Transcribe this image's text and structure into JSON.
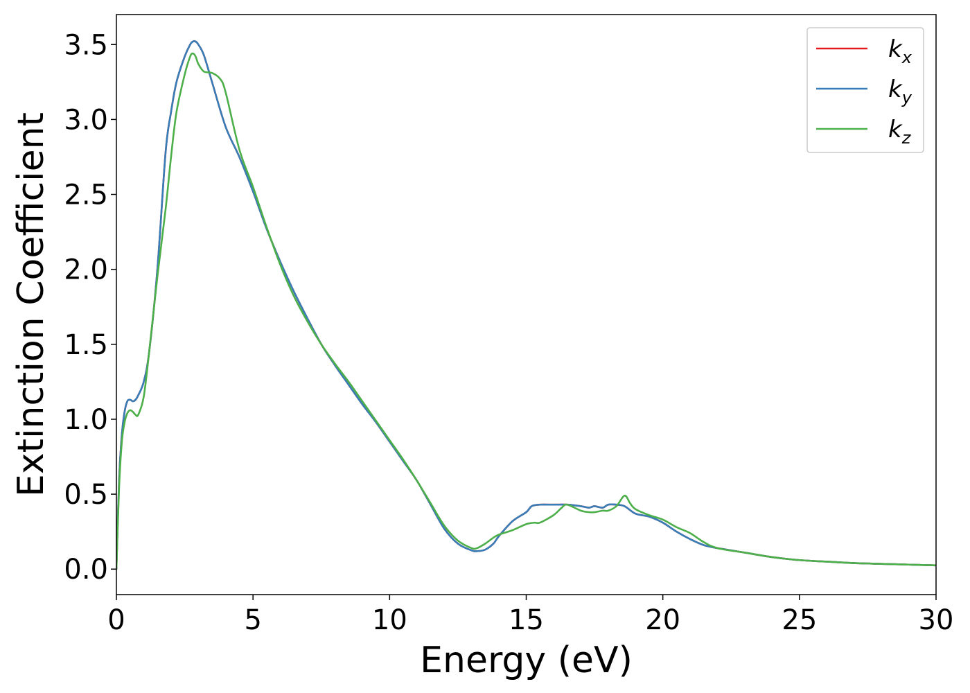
{
  "chart_data": {
    "type": "line",
    "title": "",
    "xlabel": "Energy (eV)",
    "ylabel": "Extinction Coefficient",
    "xlim": [
      0,
      30
    ],
    "ylim": [
      -0.17,
      3.7
    ],
    "xticks": [
      0,
      5,
      10,
      15,
      20,
      25,
      30
    ],
    "yticks": [
      0.0,
      0.5,
      1.0,
      1.5,
      2.0,
      2.5,
      3.0,
      3.5
    ],
    "xtick_labels": [
      "0",
      "5",
      "10",
      "15",
      "20",
      "25",
      "30"
    ],
    "ytick_labels": [
      "0.0",
      "0.5",
      "1.0",
      "1.5",
      "2.0",
      "2.5",
      "3.0",
      "3.5"
    ],
    "grid": false,
    "legend_position": "top-right",
    "series": [
      {
        "name": "k_x",
        "legend_base": "k",
        "legend_sub": "x",
        "color": "#e41a1c",
        "x": [
          0,
          0.1,
          0.2,
          0.3,
          0.4,
          0.5,
          0.6,
          0.7,
          0.8,
          1.0,
          1.2,
          1.5,
          1.8,
          2.0,
          2.2,
          2.5,
          2.7,
          2.8,
          2.9,
          3.0,
          3.2,
          3.5,
          4.0,
          4.5,
          5.0,
          5.5,
          6.0,
          6.5,
          7.0,
          7.5,
          8.0,
          8.5,
          9.0,
          9.5,
          10.0,
          10.5,
          11.0,
          11.5,
          12.0,
          12.5,
          13.0,
          13.2,
          13.5,
          13.8,
          14.0,
          14.5,
          15.0,
          15.2,
          15.5,
          16.0,
          16.5,
          17.0,
          17.3,
          17.5,
          17.8,
          18.0,
          18.3,
          18.6,
          19.0,
          19.5,
          20.0,
          20.5,
          21.0,
          21.5,
          22.0,
          23.0,
          24.0,
          25.0,
          26.0,
          27.0,
          28.0,
          29.0,
          30.0
        ],
        "y": [
          0.0,
          0.6,
          0.9,
          1.05,
          1.12,
          1.13,
          1.12,
          1.13,
          1.16,
          1.25,
          1.45,
          2.0,
          2.78,
          3.05,
          3.25,
          3.42,
          3.5,
          3.52,
          3.52,
          3.5,
          3.43,
          3.25,
          2.95,
          2.75,
          2.52,
          2.27,
          2.05,
          1.85,
          1.67,
          1.5,
          1.36,
          1.23,
          1.1,
          0.98,
          0.85,
          0.72,
          0.59,
          0.43,
          0.27,
          0.17,
          0.125,
          0.12,
          0.13,
          0.17,
          0.22,
          0.32,
          0.38,
          0.42,
          0.43,
          0.43,
          0.43,
          0.42,
          0.41,
          0.42,
          0.41,
          0.43,
          0.43,
          0.42,
          0.37,
          0.35,
          0.31,
          0.25,
          0.2,
          0.16,
          0.14,
          0.11,
          0.08,
          0.06,
          0.05,
          0.04,
          0.035,
          0.03,
          0.025
        ]
      },
      {
        "name": "k_y",
        "legend_base": "k",
        "legend_sub": "y",
        "color": "#377eb8",
        "x": [
          0,
          0.1,
          0.2,
          0.3,
          0.4,
          0.5,
          0.6,
          0.7,
          0.8,
          1.0,
          1.2,
          1.5,
          1.8,
          2.0,
          2.2,
          2.5,
          2.7,
          2.8,
          2.9,
          3.0,
          3.2,
          3.5,
          4.0,
          4.5,
          5.0,
          5.5,
          6.0,
          6.5,
          7.0,
          7.5,
          8.0,
          8.5,
          9.0,
          9.5,
          10.0,
          10.5,
          11.0,
          11.5,
          12.0,
          12.5,
          13.0,
          13.2,
          13.5,
          13.8,
          14.0,
          14.5,
          15.0,
          15.2,
          15.5,
          16.0,
          16.5,
          17.0,
          17.3,
          17.5,
          17.8,
          18.0,
          18.3,
          18.6,
          19.0,
          19.5,
          20.0,
          20.5,
          21.0,
          21.5,
          22.0,
          23.0,
          24.0,
          25.0,
          26.0,
          27.0,
          28.0,
          29.0,
          30.0
        ],
        "y": [
          0.0,
          0.6,
          0.9,
          1.05,
          1.12,
          1.13,
          1.12,
          1.13,
          1.16,
          1.25,
          1.45,
          2.0,
          2.78,
          3.05,
          3.25,
          3.42,
          3.5,
          3.52,
          3.52,
          3.5,
          3.43,
          3.25,
          2.95,
          2.75,
          2.52,
          2.27,
          2.05,
          1.85,
          1.67,
          1.5,
          1.36,
          1.23,
          1.1,
          0.98,
          0.85,
          0.72,
          0.59,
          0.43,
          0.27,
          0.17,
          0.125,
          0.12,
          0.13,
          0.17,
          0.22,
          0.32,
          0.38,
          0.42,
          0.43,
          0.43,
          0.43,
          0.42,
          0.41,
          0.42,
          0.41,
          0.43,
          0.43,
          0.42,
          0.37,
          0.35,
          0.31,
          0.25,
          0.2,
          0.16,
          0.14,
          0.11,
          0.08,
          0.06,
          0.05,
          0.04,
          0.035,
          0.03,
          0.025
        ]
      },
      {
        "name": "k_z",
        "legend_base": "k",
        "legend_sub": "z",
        "color": "#4daf4a",
        "x": [
          0,
          0.1,
          0.2,
          0.3,
          0.4,
          0.5,
          0.6,
          0.7,
          0.8,
          1.0,
          1.2,
          1.5,
          1.8,
          2.0,
          2.2,
          2.5,
          2.7,
          2.8,
          2.9,
          3.0,
          3.2,
          3.5,
          3.8,
          4.0,
          4.5,
          5.0,
          5.5,
          6.0,
          6.5,
          7.0,
          7.5,
          8.0,
          8.5,
          9.0,
          9.5,
          10.0,
          10.5,
          11.0,
          11.5,
          12.0,
          12.5,
          13.0,
          13.2,
          13.5,
          13.8,
          14.0,
          14.5,
          15.0,
          15.3,
          15.5,
          16.0,
          16.3,
          16.5,
          17.0,
          17.3,
          17.5,
          17.8,
          18.0,
          18.3,
          18.6,
          18.8,
          19.0,
          19.5,
          20.0,
          20.5,
          21.0,
          21.5,
          22.0,
          23.0,
          24.0,
          25.0,
          26.0,
          27.0,
          28.0,
          29.0,
          30.0
        ],
        "y": [
          0.0,
          0.55,
          0.85,
          0.98,
          1.04,
          1.06,
          1.05,
          1.03,
          1.03,
          1.15,
          1.45,
          1.95,
          2.4,
          2.75,
          3.05,
          3.3,
          3.42,
          3.44,
          3.42,
          3.37,
          3.32,
          3.31,
          3.27,
          3.18,
          2.8,
          2.55,
          2.28,
          2.03,
          1.82,
          1.65,
          1.5,
          1.37,
          1.25,
          1.12,
          0.99,
          0.86,
          0.73,
          0.59,
          0.44,
          0.29,
          0.19,
          0.14,
          0.14,
          0.17,
          0.21,
          0.23,
          0.26,
          0.3,
          0.31,
          0.31,
          0.36,
          0.41,
          0.43,
          0.39,
          0.38,
          0.38,
          0.39,
          0.39,
          0.42,
          0.49,
          0.44,
          0.4,
          0.36,
          0.33,
          0.28,
          0.24,
          0.18,
          0.14,
          0.11,
          0.08,
          0.06,
          0.05,
          0.04,
          0.035,
          0.03,
          0.025
        ]
      }
    ]
  }
}
